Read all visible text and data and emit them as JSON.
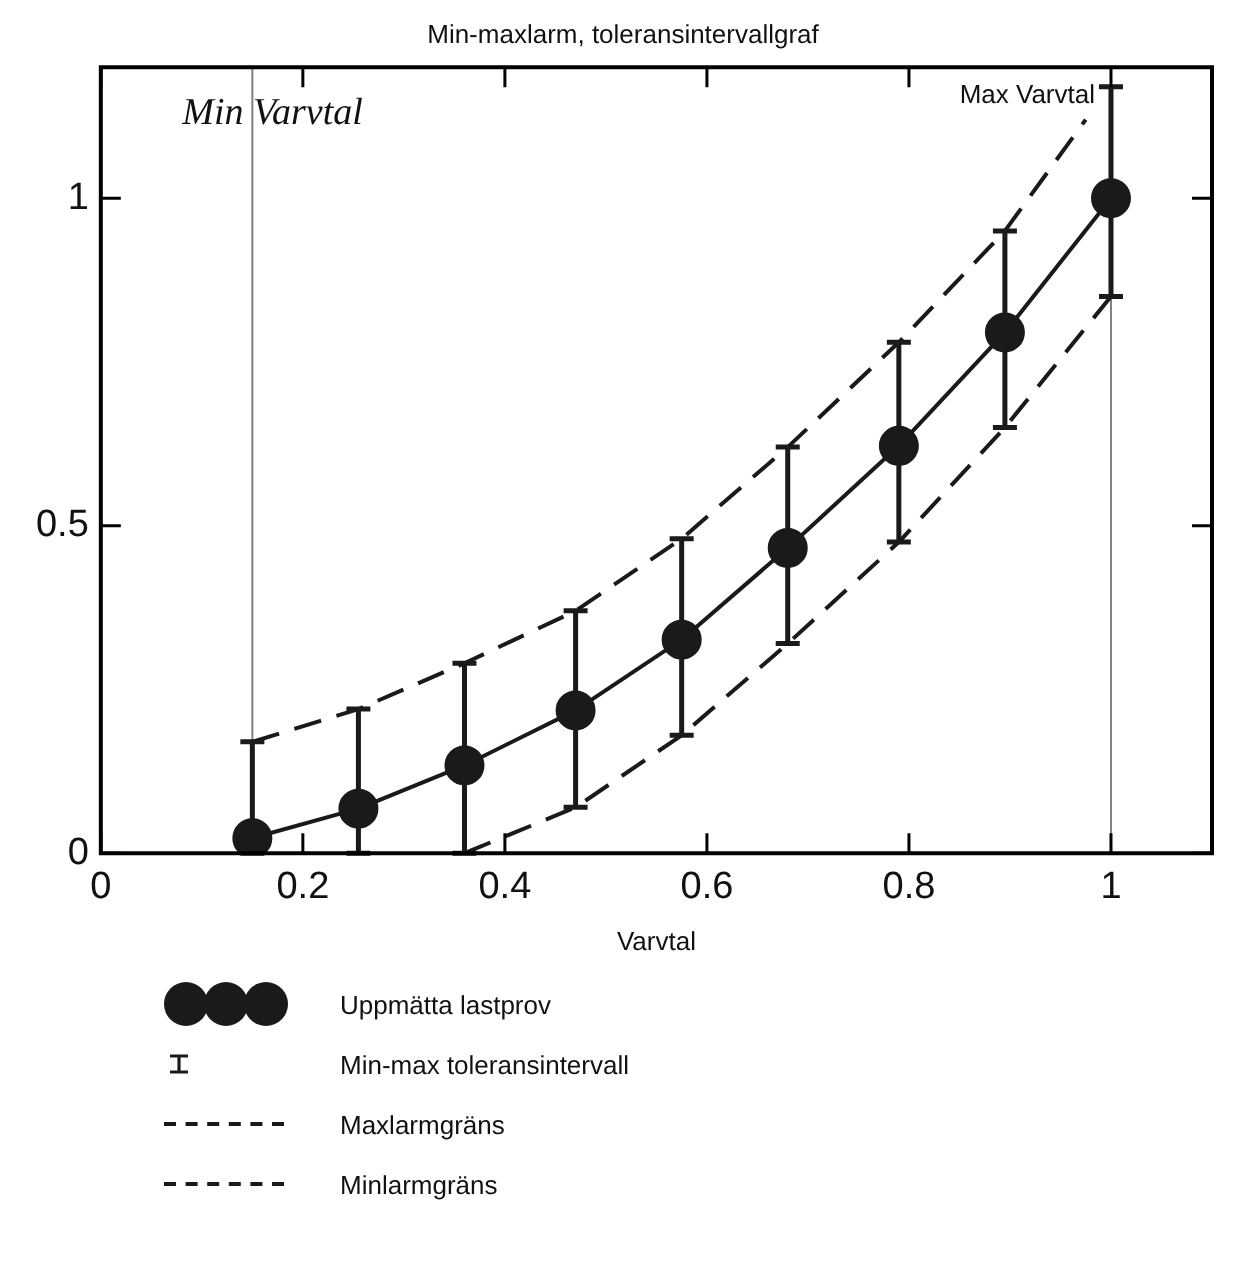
{
  "chart_data": {
    "type": "line",
    "title": "Min-maxlarm, toleransintervallgraf",
    "xlabel": "Varvtal",
    "x": [
      0.15,
      0.255,
      0.36,
      0.47,
      0.575,
      0.68,
      0.79,
      0.895,
      1.0
    ],
    "series": [
      {
        "name": "Uppmätta lastprov",
        "color": "#1a1a1a",
        "marker": "circle",
        "line_style": "solid",
        "values": [
          0.023,
          0.068,
          0.134,
          0.218,
          0.326,
          0.466,
          0.622,
          0.795,
          1.0
        ],
        "errors": [
          [
            0,
            0.17
          ],
          [
            0,
            0.22
          ],
          [
            0,
            0.29
          ],
          [
            0.07,
            0.37
          ],
          [
            0.18,
            0.48
          ],
          [
            0.32,
            0.62
          ],
          [
            0.475,
            0.78
          ],
          [
            0.65,
            0.95
          ],
          [
            0.85,
            1.17
          ]
        ]
      },
      {
        "name": "Maxlarmgräns",
        "color": "#1a1a1a",
        "marker": "none",
        "line_style": "dashed",
        "x": [
          0.15,
          0.255,
          0.36,
          0.47,
          0.575,
          0.68,
          0.79,
          0.895,
          0.975
        ],
        "values": [
          0.17,
          0.22,
          0.29,
          0.37,
          0.48,
          0.62,
          0.78,
          0.95,
          1.12
        ]
      },
      {
        "name": "Minlarmgräns",
        "color": "#1a1a1a",
        "marker": "none",
        "line_style": "dashed",
        "x": [
          0.36,
          0.47,
          0.575,
          0.68,
          0.79,
          0.895,
          1.0
        ],
        "values": [
          0,
          0.07,
          0.18,
          0.32,
          0.475,
          0.65,
          0.85
        ]
      }
    ],
    "annotations": [
      "Min-max toleransintervall"
    ],
    "ref_lines": [
      {
        "axis": "x",
        "value": 0.15,
        "label": "Min Varvtal",
        "color": "#808080"
      },
      {
        "axis": "x",
        "value": 1.0,
        "label": "Max Varvtal",
        "color": "#808080"
      }
    ],
    "xlim": [
      0,
      1.1
    ],
    "ylim": [
      0,
      1.2
    ],
    "xticks": [
      0,
      0.2,
      0.4,
      0.6,
      0.8,
      1
    ],
    "yticks": [
      0,
      0.5,
      1
    ],
    "grid": false,
    "legend": "bottom"
  }
}
